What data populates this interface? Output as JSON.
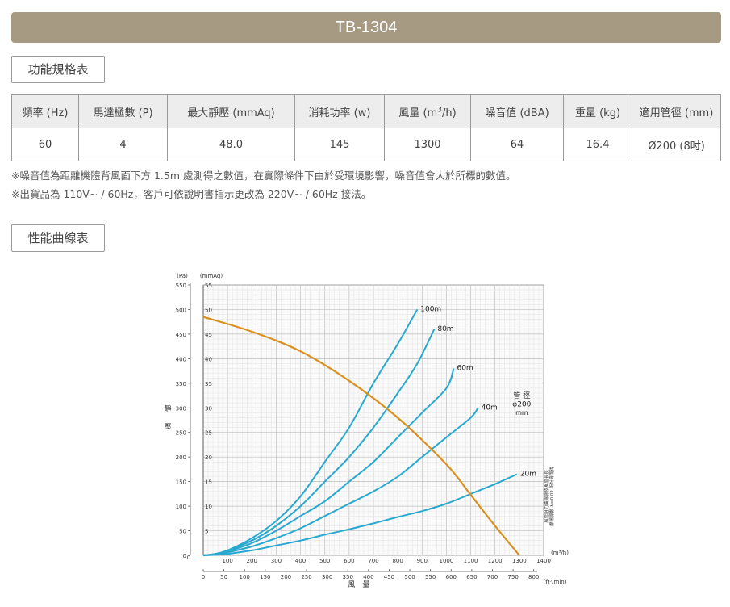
{
  "title": "TB-1304",
  "spec_section_label": "功能規格表",
  "curve_section_label": "性能曲線表",
  "spec_table": {
    "headers": [
      {
        "pre": "頻率 (Hz)",
        "sup": "",
        "post": ""
      },
      {
        "pre": "馬達極數 (P)",
        "sup": "",
        "post": ""
      },
      {
        "pre": "最大靜壓 (mmAq)",
        "sup": "",
        "post": ""
      },
      {
        "pre": "消耗功率 (w)",
        "sup": "",
        "post": ""
      },
      {
        "pre": "風量 (m",
        "sup": "3",
        "post": "/h)"
      },
      {
        "pre": "噪音值 (dBA)",
        "sup": "",
        "post": ""
      },
      {
        "pre": "重量 (kg)",
        "sup": "",
        "post": ""
      },
      {
        "pre": "適用管徑 (mm)",
        "sup": "",
        "post": ""
      }
    ],
    "values": [
      "60",
      "4",
      "48.0",
      "145",
      "1300",
      "64",
      "16.4",
      "Ø200 (8吋)"
    ]
  },
  "notes": [
    "※噪音值為距離機體背風面下方 1.5m 處測得之數值，在實際條件下由於受環境影響，噪音值會大於所標的數值。",
    "※出貨品為 110V~ / 60Hz，客戶可依說明書指示更改為 220V~ / 60Hz 接法。"
  ],
  "chart_data": {
    "type": "line",
    "unit_pa": "(Pa)",
    "unit_mmaq": "(mmAq)",
    "ylabel": "靜壓",
    "xlabel": "風量",
    "x_unit_m3h": "(m³/h)",
    "x_unit_ft3min": "(ft³/min)",
    "xlim_m3h": [
      0,
      1400
    ],
    "ylim_mmaq": [
      0,
      55
    ],
    "x_ticks_m3h": [
      0,
      100,
      200,
      300,
      400,
      500,
      600,
      700,
      800,
      900,
      1000,
      1100,
      1200,
      1300,
      1400
    ],
    "x_ticks_ft3min": [
      0,
      50,
      100,
      150,
      200,
      250,
      300,
      350,
      400,
      450,
      500,
      550,
      600,
      650,
      700,
      750,
      800
    ],
    "y_ticks_pa": [
      0,
      50,
      100,
      150,
      200,
      250,
      300,
      350,
      400,
      450,
      500,
      550
    ],
    "y_ticks_mmaq": [
      5,
      10,
      15,
      20,
      25,
      30,
      35,
      40,
      45,
      50,
      55
    ],
    "grid": true,
    "pipe_label": "管 徑",
    "pipe_size": "φ200",
    "pipe_unit": "mm",
    "side_note_1": "風管阻力曲線係依風管長度",
    "side_note_2": "摩擦係數 λ＝0.02 所計算而得",
    "fan_curve": {
      "color": "#d9901d",
      "x": [
        0,
        200,
        400,
        600,
        800,
        1000,
        1100,
        1200,
        1300
      ],
      "y": [
        48.5,
        45.5,
        41.5,
        35.5,
        28,
        18.5,
        12.3,
        6,
        0
      ]
    },
    "series": [
      {
        "name": "100m",
        "color": "#29a8d0",
        "x": [
          0,
          50,
          100,
          200,
          300,
          400,
          500,
          600,
          700,
          800,
          880
        ],
        "y": [
          0,
          0.3,
          1,
          3.5,
          7,
          12,
          19,
          26,
          35,
          43,
          50
        ]
      },
      {
        "name": "80m",
        "color": "#29a8d0",
        "x": [
          0,
          50,
          100,
          200,
          300,
          400,
          500,
          600,
          700,
          800,
          880,
          950
        ],
        "y": [
          0,
          0.3,
          1,
          3,
          6,
          10,
          15,
          20,
          26,
          33,
          39,
          46
        ]
      },
      {
        "name": "60m",
        "color": "#29a8d0",
        "x": [
          0,
          50,
          100,
          200,
          300,
          400,
          500,
          600,
          700,
          800,
          900,
          1000,
          1030
        ],
        "y": [
          0,
          0.2,
          0.8,
          2.5,
          5,
          8,
          11,
          15,
          19,
          24,
          29,
          34,
          38
        ]
      },
      {
        "name": "40m",
        "color": "#29a8d0",
        "x": [
          0,
          50,
          100,
          200,
          300,
          400,
          500,
          600,
          700,
          800,
          900,
          1000,
          1100,
          1130
        ],
        "y": [
          0,
          0.2,
          0.6,
          1.8,
          3.5,
          5.5,
          8,
          10.5,
          13,
          16,
          20,
          24,
          28,
          30
        ]
      },
      {
        "name": "20m",
        "color": "#29a8d0",
        "x": [
          0,
          50,
          100,
          200,
          300,
          400,
          500,
          600,
          700,
          800,
          900,
          1000,
          1100,
          1200,
          1290
        ],
        "y": [
          0,
          0.1,
          0.3,
          1,
          2,
          3,
          4.2,
          5.3,
          6.5,
          7.8,
          9,
          10.5,
          12.5,
          14.5,
          16.5
        ]
      }
    ]
  }
}
